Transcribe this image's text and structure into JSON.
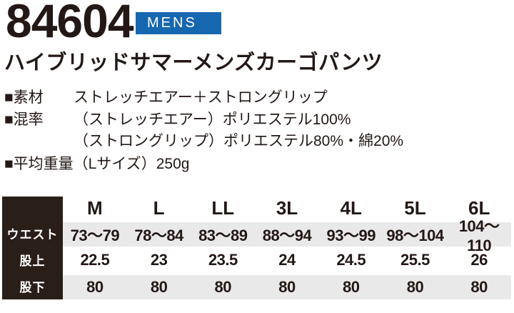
{
  "header": {
    "product_number": "84604",
    "gender_badge": "MENS",
    "title": "ハイブリッドサマーメンズカーゴパンツ"
  },
  "specs": {
    "rows": [
      {
        "label": "■素材",
        "value": "ストレッチエアー＋ストロングリップ"
      },
      {
        "label": "■混率",
        "value": "（ストレッチエアー）ポリエステル100%"
      },
      {
        "label": "",
        "value": "（ストロングリップ）ポリエステル80%・綿20%"
      }
    ],
    "weight_line": "■平均重量（Lサイズ）250g"
  },
  "size_table": {
    "sizes": [
      "M",
      "L",
      "LL",
      "3L",
      "4L",
      "5L",
      "6L"
    ],
    "rows": [
      {
        "label": "ウエスト",
        "values": [
          "73〜79",
          "78〜84",
          "83〜89",
          "88〜94",
          "93〜99",
          "98〜104",
          "104〜110"
        ]
      },
      {
        "label": "股上",
        "values": [
          "22.5",
          "23",
          "23.5",
          "24",
          "24.5",
          "25.5",
          "26"
        ]
      },
      {
        "label": "股下",
        "values": [
          "80",
          "80",
          "80",
          "80",
          "80",
          "80",
          "80"
        ]
      }
    ]
  },
  "colors": {
    "accent_blue": "#1767b0",
    "ink": "#231815",
    "table_label_bg": "#2a1e19",
    "row_shade": "#e9e9e9"
  }
}
